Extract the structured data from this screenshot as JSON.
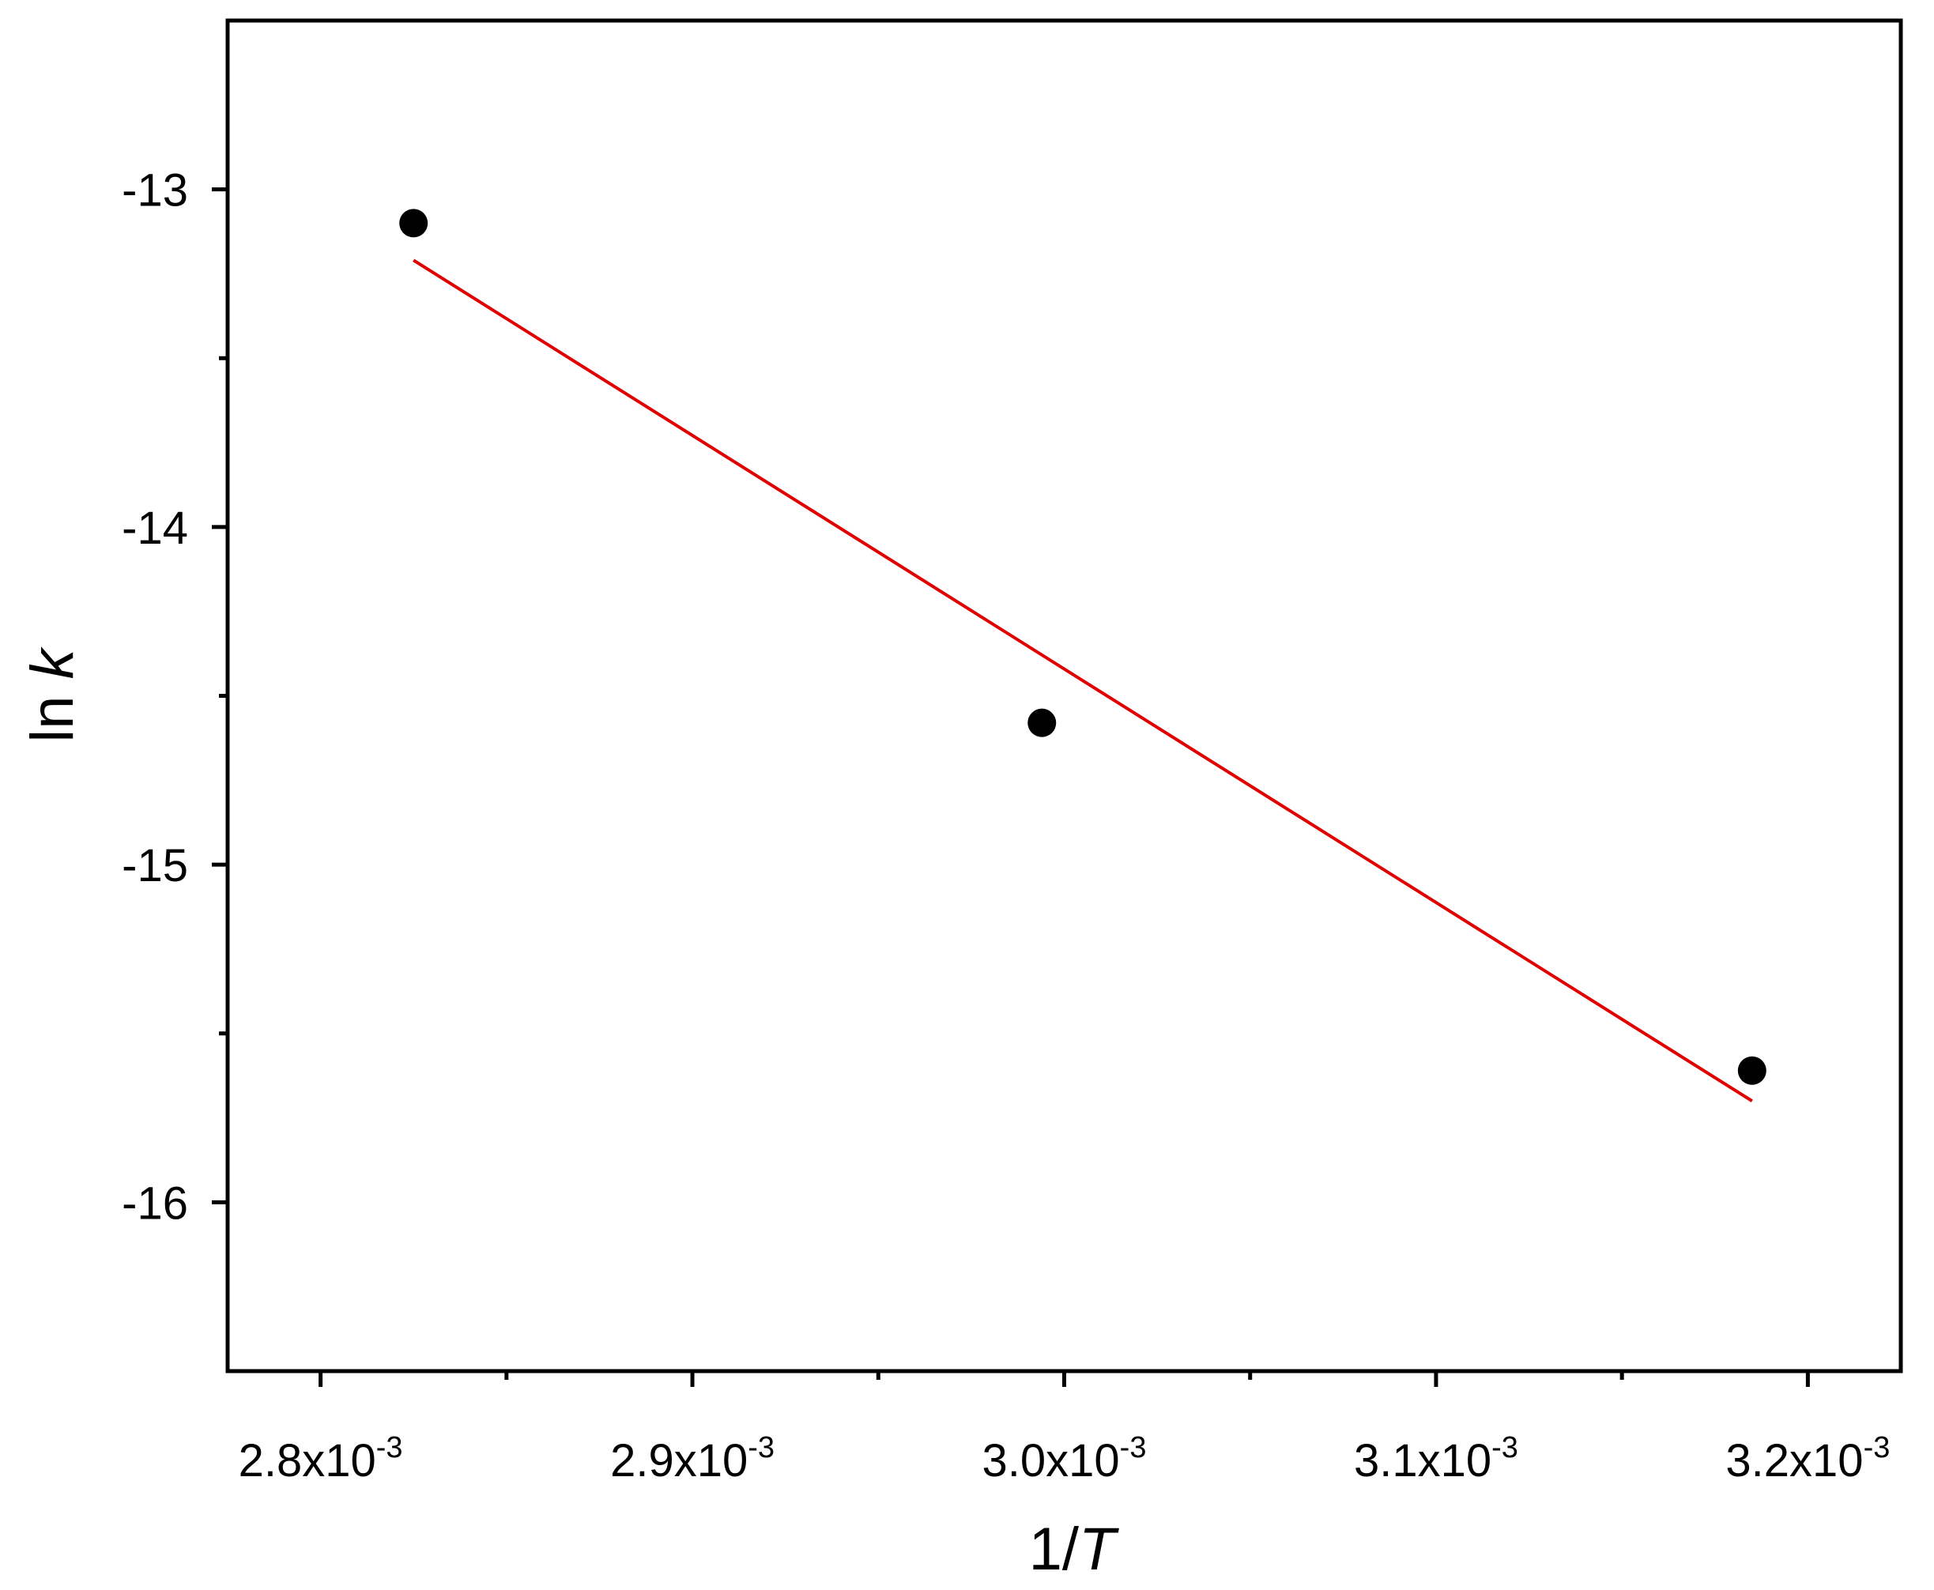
{
  "chart_data": {
    "type": "scatter",
    "xlabel": {
      "plain": "1/",
      "italic": "T"
    },
    "ylabel": {
      "plain": "ln ",
      "italic": "k"
    },
    "xlim": [
      0.002775,
      0.003225
    ],
    "ylim": [
      -16.5,
      -12.5
    ],
    "x_ticks": [
      {
        "value": 0.0028,
        "mantissa": "2.8x10",
        "exponent": "-3"
      },
      {
        "value": 0.0029,
        "mantissa": "2.9x10",
        "exponent": "-3"
      },
      {
        "value": 0.003,
        "mantissa": "3.0x10",
        "exponent": "-3"
      },
      {
        "value": 0.0031,
        "mantissa": "3.1x10",
        "exponent": "-3"
      },
      {
        "value": 0.0032,
        "mantissa": "3.2x10",
        "exponent": "-3"
      }
    ],
    "x_minor_ticks": [
      0.00285,
      0.00295,
      0.00305,
      0.00315
    ],
    "y_ticks": [
      {
        "value": -13,
        "label": "-13"
      },
      {
        "value": -14,
        "label": "-14"
      },
      {
        "value": -15,
        "label": "-15"
      },
      {
        "value": -16,
        "label": "-16"
      }
    ],
    "y_minor_ticks": [
      -13.5,
      -14.5,
      -15.5
    ],
    "grid": false,
    "series": [
      {
        "kind": "points",
        "color": "#000000",
        "x": [
          0.002825,
          0.002994,
          0.003185
        ],
        "y": [
          -13.1,
          -14.58,
          -15.61
        ]
      },
      {
        "kind": "fit-line",
        "color": "#e00000",
        "x": [
          0.002825,
          0.003185
        ],
        "y": [
          -13.21,
          -15.7
        ]
      }
    ]
  }
}
